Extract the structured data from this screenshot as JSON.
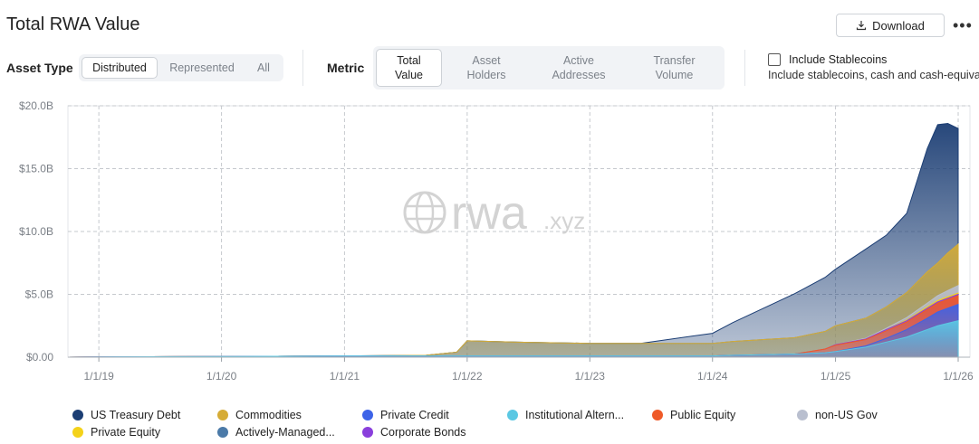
{
  "header": {
    "title": "Total RWA Value",
    "download_label": "Download",
    "more_label": "•••"
  },
  "controls": {
    "asset_type_label": "Asset Type",
    "asset_type_options": [
      "Distributed",
      "Represented",
      "All"
    ],
    "asset_type_selected": "Distributed",
    "metric_label": "Metric",
    "metric_options": [
      "Total Value",
      "Asset Holders",
      "Active Addresses",
      "Transfer Volume"
    ],
    "metric_selected": "Total Value",
    "stablecoins_label": "Include Stablecoins",
    "stablecoins_description": "Include stablecoins, cash and cash-equival",
    "stablecoins_checked": false
  },
  "watermark": {
    "name": "rwa",
    "suffix": ".xyz"
  },
  "chart_data": {
    "type": "area",
    "stacked": true,
    "x_ticks": [
      "1/1/19",
      "1/1/20",
      "1/1/21",
      "1/1/22",
      "1/1/23",
      "1/1/24",
      "1/1/25",
      "1/1/26"
    ],
    "y_ticks": [
      "$0.00",
      "$5.0B",
      "$10.0B",
      "$15.0B",
      "$20.0B"
    ],
    "ylim": [
      0,
      20
    ],
    "y_unit": "$B",
    "grid": true,
    "legend_position": "bottom",
    "x": [
      "2018-10-01",
      "2019-01-01",
      "2020-01-01",
      "2021-01-01",
      "2021-04-01",
      "2021-09-01",
      "2021-12-01",
      "2022-01-01",
      "2022-06-01",
      "2023-01-01",
      "2023-06-01",
      "2024-01-01",
      "2024-03-01",
      "2024-06-01",
      "2024-09-01",
      "2024-12-01",
      "2025-01-01",
      "2025-04-01",
      "2025-06-01",
      "2025-08-01",
      "2025-10-01",
      "2025-11-01",
      "2025-12-01",
      "2026-01-01"
    ],
    "series": [
      {
        "name": "Institutional Altern...",
        "color": "#5bc8e3",
        "values": [
          0,
          0.02,
          0.05,
          0.1,
          0.1,
          0.1,
          0.1,
          0.1,
          0.1,
          0.1,
          0.1,
          0.1,
          0.15,
          0.2,
          0.25,
          0.35,
          0.45,
          0.8,
          1.2,
          1.6,
          2.2,
          2.5,
          2.7,
          2.9
        ]
      },
      {
        "name": "Private Credit",
        "color": "#3d63e8",
        "values": [
          0,
          0,
          0,
          0,
          0,
          0,
          0,
          0,
          0,
          0,
          0,
          0,
          0,
          0,
          0,
          0,
          0,
          0.1,
          0.3,
          0.6,
          0.9,
          1.1,
          1.2,
          1.3
        ]
      },
      {
        "name": "Public Equity",
        "color": "#ef5a28",
        "values": [
          0,
          0,
          0,
          0,
          0,
          0,
          0,
          0,
          0,
          0,
          0,
          0,
          0,
          0,
          0,
          0.3,
          0.5,
          0.5,
          0.6,
          0.6,
          0.7,
          0.7,
          0.7,
          0.7
        ]
      },
      {
        "name": "Corporate Bonds",
        "color": "#8a3fdc",
        "values": [
          0,
          0,
          0,
          0,
          0,
          0,
          0,
          0,
          0,
          0,
          0,
          0,
          0,
          0,
          0,
          0,
          0.05,
          0.05,
          0.1,
          0.1,
          0.1,
          0.1,
          0.1,
          0.1
        ]
      },
      {
        "name": "Private Equity",
        "color": "#f4d21a",
        "values": [
          0,
          0,
          0,
          0,
          0,
          0,
          0,
          0,
          0,
          0,
          0,
          0,
          0,
          0,
          0,
          0,
          0,
          0,
          0,
          0.05,
          0.1,
          0.1,
          0.1,
          0.1
        ]
      },
      {
        "name": "non-US Gov",
        "color": "#b9bfcf",
        "values": [
          0,
          0,
          0,
          0,
          0,
          0,
          0,
          0,
          0,
          0,
          0,
          0,
          0,
          0,
          0,
          0,
          0,
          0.05,
          0.1,
          0.2,
          0.3,
          0.4,
          0.5,
          0.6
        ]
      },
      {
        "name": "Commodities",
        "color": "#d6ac36",
        "values": [
          0,
          0,
          0,
          0,
          0.02,
          0.05,
          0.3,
          1.2,
          1.1,
          1.0,
          1.0,
          1.0,
          1.1,
          1.2,
          1.3,
          1.4,
          1.5,
          1.6,
          1.7,
          2.0,
          2.5,
          2.6,
          3.0,
          3.3
        ]
      },
      {
        "name": "Actively-Managed...",
        "color": "#4b7aa8",
        "values": [
          0,
          0,
          0,
          0,
          0,
          0,
          0,
          0,
          0,
          0,
          0,
          0,
          0,
          0,
          0,
          0,
          0,
          0,
          0,
          0,
          0,
          0,
          0,
          0
        ]
      },
      {
        "name": "US Treasury Debt",
        "color": "#1c3e74",
        "values": [
          0,
          0,
          0,
          0,
          0,
          0,
          0,
          0,
          0,
          0,
          0,
          0.8,
          1.5,
          2.5,
          3.5,
          4.3,
          4.5,
          5.5,
          5.7,
          6.3,
          9.8,
          11.0,
          10.3,
          9.2
        ]
      }
    ]
  },
  "legend": [
    {
      "name": "US Treasury Debt",
      "color": "#1c3e74"
    },
    {
      "name": "Commodities",
      "color": "#d6ac36"
    },
    {
      "name": "Private Credit",
      "color": "#3d63e8"
    },
    {
      "name": "Institutional Altern...",
      "color": "#5bc8e3"
    },
    {
      "name": "Public Equity",
      "color": "#ef5a28"
    },
    {
      "name": "non-US Gov",
      "color": "#b9bfcf"
    },
    {
      "name": "Private Equity",
      "color": "#f4d21a"
    },
    {
      "name": "Actively-Managed...",
      "color": "#4b7aa8"
    },
    {
      "name": "Corporate Bonds",
      "color": "#8a3fdc"
    }
  ]
}
